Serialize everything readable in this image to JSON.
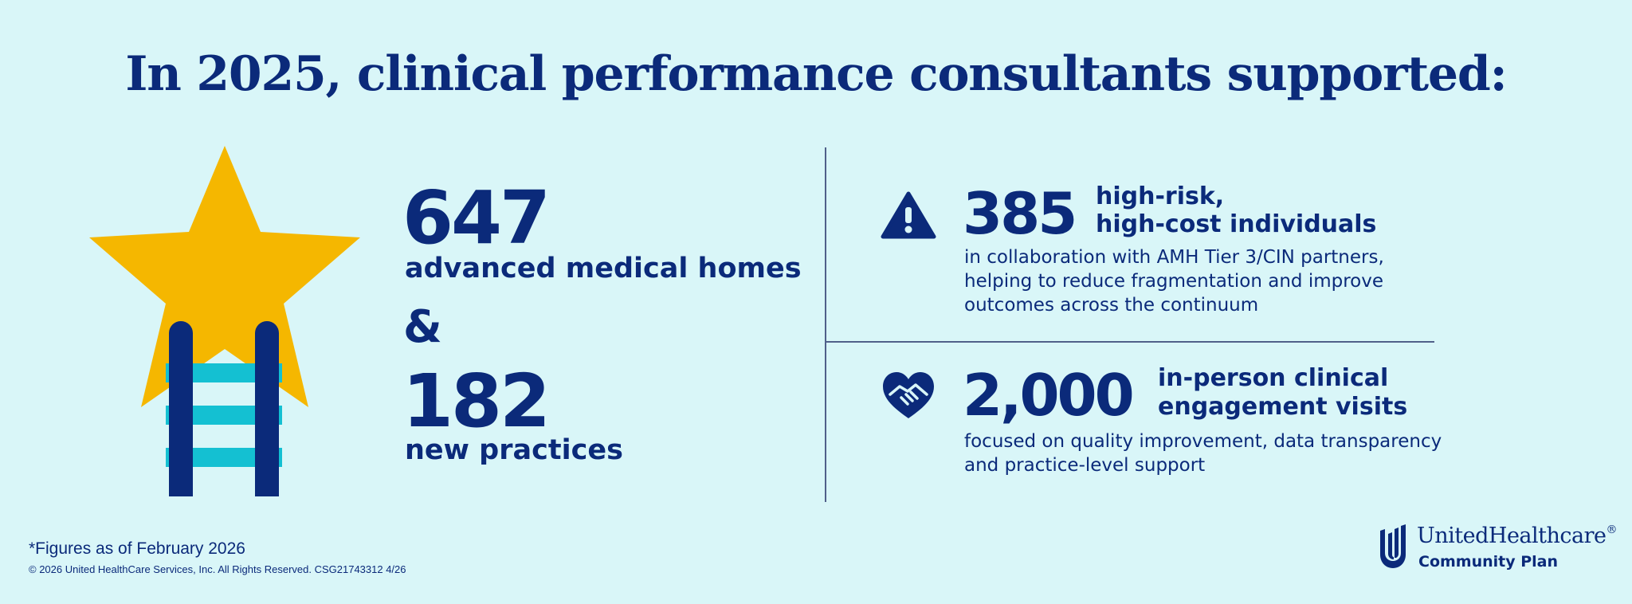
{
  "header": {
    "title": "In 2025, clinical performance consultants supported:"
  },
  "left_stats": {
    "first": {
      "number": "647",
      "caption": "advanced medical homes"
    },
    "connector": "&",
    "second": {
      "number": "182",
      "caption": "new practices"
    },
    "illustration": "star-with-ladder-icon"
  },
  "right_stats": [
    {
      "icon": "warning-triangle-icon",
      "number": "385",
      "headline": [
        "high-risk,",
        "high-cost individuals"
      ],
      "description": [
        "in collaboration with AMH Tier 3/CIN partners,",
        "helping to reduce fragmentation and improve",
        "outcomes across the continuum"
      ]
    },
    {
      "icon": "heart-handshake-icon",
      "number": "2,000",
      "headline": [
        "in-person clinical",
        "engagement visits"
      ],
      "description": [
        "focused on quality improvement, data transparency",
        "and practice-level support"
      ]
    }
  ],
  "footer": {
    "footnote": "*Figures as of February 2026",
    "copyright": "© 2026 United HealthCare Services, Inc. All Rights Reserved. CSG21743312 4/26"
  },
  "brand": {
    "name": "UnitedHealthcare",
    "registered": "®",
    "subtitle": "Community Plan",
    "logo_icon": "uhc-shield-logo-icon"
  },
  "colors": {
    "background": "#d9f6f8",
    "navy": "#0b2a7a",
    "star": "#f5b700",
    "ladder_rungs": "#14c0d2"
  }
}
